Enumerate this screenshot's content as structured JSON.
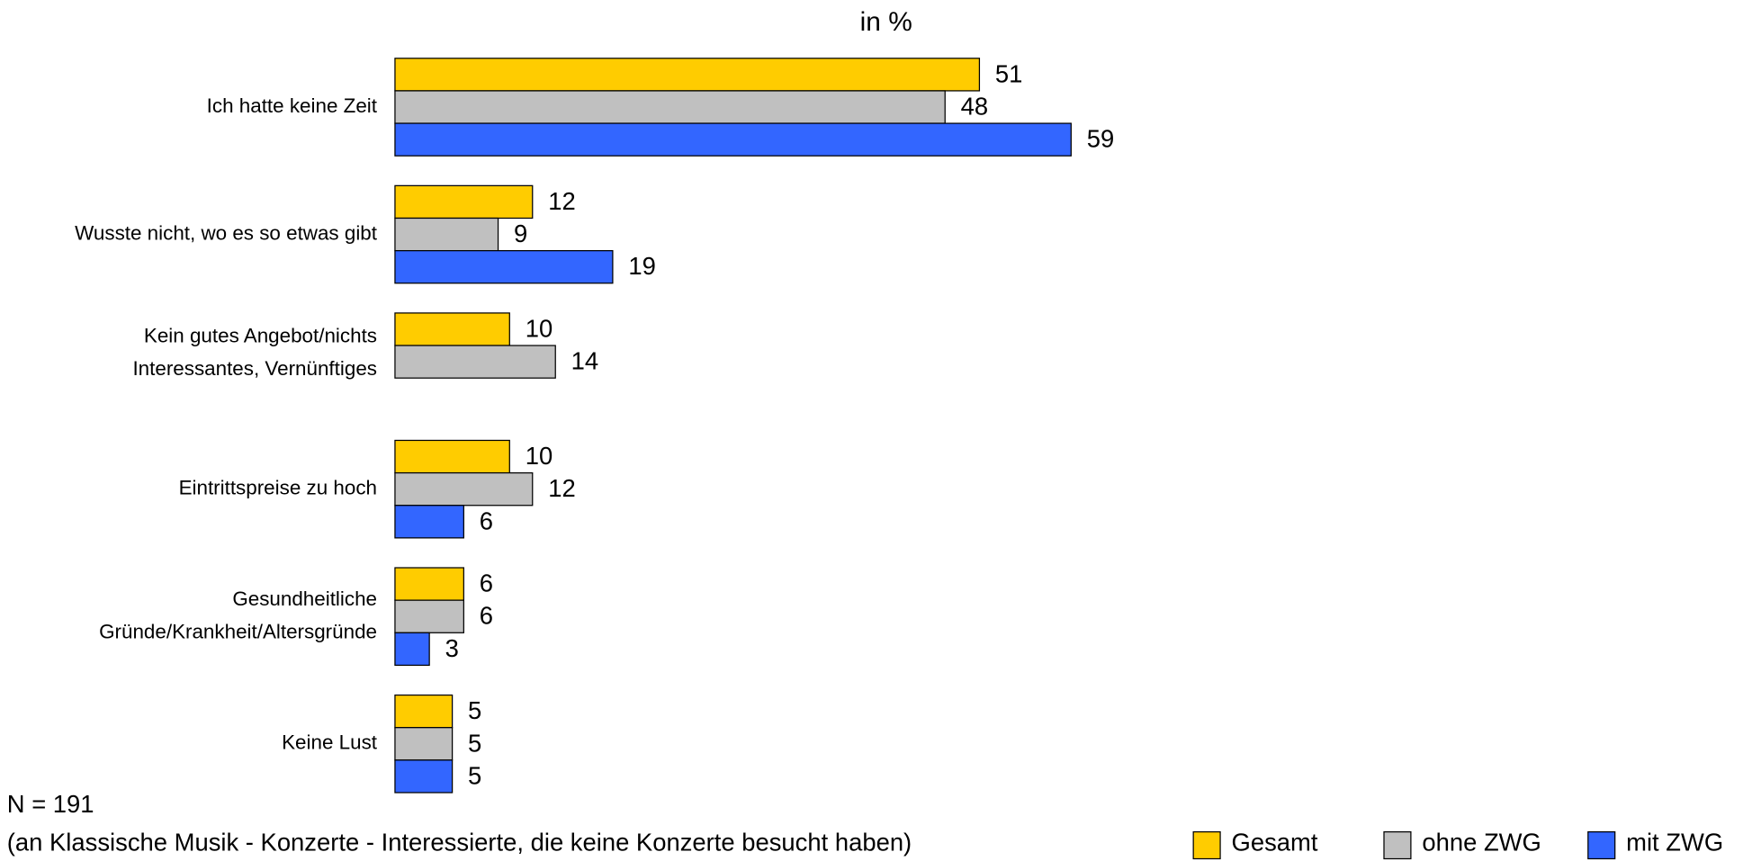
{
  "chart_data": {
    "type": "bar",
    "orientation": "horizontal",
    "title": "in %",
    "categories": [
      "Ich hatte keine Zeit",
      "Wusste nicht, wo es so etwas gibt",
      "Kein gutes Angebot/nichts\nInteressantes, Vernünftiges",
      "Eintrittspreise zu hoch",
      "Gesundheitliche\nGründe/Krankheit/Altersgründe",
      "Keine Lust"
    ],
    "series": [
      {
        "name": "Gesamt",
        "color": "#FFCC00",
        "values": [
          51,
          12,
          10,
          10,
          6,
          5
        ]
      },
      {
        "name": "ohne ZWG",
        "color": "#C0C0C0",
        "values": [
          48,
          9,
          14,
          12,
          6,
          5
        ]
      },
      {
        "name": "mit ZWG",
        "color": "#3366FF",
        "values": [
          59,
          19,
          null,
          6,
          3,
          5
        ]
      }
    ],
    "xlim": [
      0,
      100
    ],
    "annotations": [
      "N = 191",
      "(an Klassische Musik - Konzerte - Interessierte, die keine Konzerte besucht haben)"
    ],
    "legend": "bottom-right"
  }
}
